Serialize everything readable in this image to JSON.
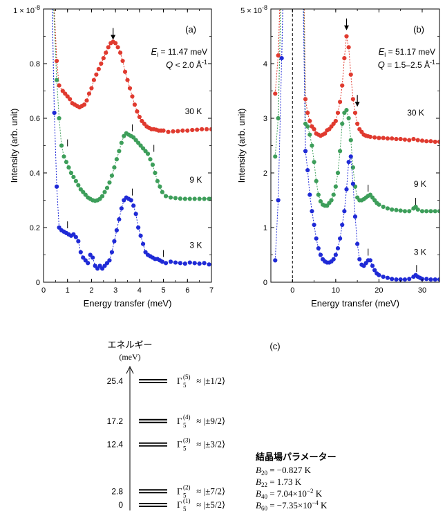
{
  "chart_data": [
    {
      "type": "scatter",
      "panel_label": "(a)",
      "xlabel": "Energy transfer (meV)",
      "ylabel": "Intensity (arb. unit)",
      "xlim": [
        0,
        7
      ],
      "ylim": [
        0,
        1.0
      ],
      "x_ticks": [
        "0",
        "1",
        "2",
        "3",
        "4",
        "5",
        "6",
        "7"
      ],
      "y_ticks": [
        "0",
        "0.2",
        "0.4",
        "0.6",
        "0.8"
      ],
      "y_top_label": "1 × 10",
      "y_top_exp": "-8",
      "ei_label": "E",
      "ei_sub": "i",
      "ei_value": " = 11.47 meV",
      "q_label": "Q",
      "q_value": " < 2.0 Å",
      "q_exp": "-1",
      "series": [
        {
          "name": "30 K",
          "color": "#e03a2f",
          "x": [
            0.55,
            0.65,
            0.8,
            0.9,
            1.0,
            1.1,
            1.2,
            1.3,
            1.4,
            1.5,
            1.6,
            1.7,
            1.8,
            1.9,
            2.0,
            2.1,
            2.2,
            2.3,
            2.4,
            2.5,
            2.6,
            2.7,
            2.8,
            2.9,
            3.0,
            3.1,
            3.2,
            3.3,
            3.4,
            3.5,
            3.6,
            3.7,
            3.8,
            3.9,
            4.0,
            4.1,
            4.2,
            4.3,
            4.4,
            4.5,
            4.6,
            4.7,
            4.8,
            4.9,
            5.0,
            5.2,
            5.4,
            5.6,
            5.8,
            6.0,
            6.2,
            6.4,
            6.6,
            6.8,
            7.0
          ],
          "y": [
            0.81,
            0.72,
            0.7,
            0.69,
            0.68,
            0.67,
            0.655,
            0.65,
            0.645,
            0.64,
            0.645,
            0.65,
            0.665,
            0.69,
            0.71,
            0.74,
            0.76,
            0.78,
            0.8,
            0.82,
            0.84,
            0.86,
            0.875,
            0.88,
            0.875,
            0.86,
            0.84,
            0.81,
            0.77,
            0.74,
            0.71,
            0.68,
            0.65,
            0.625,
            0.605,
            0.59,
            0.58,
            0.57,
            0.565,
            0.56,
            0.56,
            0.558,
            0.555,
            0.555,
            0.555,
            0.55,
            0.552,
            0.553,
            0.555,
            0.555,
            0.557,
            0.558,
            0.56,
            0.56,
            0.56
          ]
        },
        {
          "name": "9 K",
          "color": "#3d9e5a",
          "x": [
            0.55,
            0.65,
            0.75,
            0.85,
            0.95,
            1.05,
            1.15,
            1.25,
            1.35,
            1.45,
            1.55,
            1.65,
            1.75,
            1.85,
            1.95,
            2.05,
            2.15,
            2.25,
            2.35,
            2.45,
            2.55,
            2.65,
            2.75,
            2.85,
            2.95,
            3.05,
            3.15,
            3.25,
            3.35,
            3.45,
            3.55,
            3.65,
            3.75,
            3.85,
            3.95,
            4.05,
            4.15,
            4.25,
            4.35,
            4.45,
            4.55,
            4.65,
            4.75,
            4.85,
            4.95,
            5.1,
            5.3,
            5.5,
            5.7,
            5.9,
            6.1,
            6.3,
            6.5,
            6.7,
            6.9,
            7.0
          ],
          "y": [
            0.74,
            0.6,
            0.5,
            0.46,
            0.44,
            0.42,
            0.4,
            0.385,
            0.37,
            0.355,
            0.34,
            0.33,
            0.32,
            0.31,
            0.305,
            0.3,
            0.298,
            0.3,
            0.305,
            0.315,
            0.33,
            0.345,
            0.365,
            0.39,
            0.42,
            0.45,
            0.48,
            0.51,
            0.535,
            0.545,
            0.54,
            0.535,
            0.53,
            0.52,
            0.51,
            0.5,
            0.49,
            0.48,
            0.47,
            0.45,
            0.43,
            0.4,
            0.37,
            0.35,
            0.33,
            0.315,
            0.31,
            0.308,
            0.306,
            0.305,
            0.305,
            0.305,
            0.305,
            0.305,
            0.305,
            0.305
          ]
        },
        {
          "name": "3 K",
          "color": "#1f2ad6",
          "x": [
            0.45,
            0.55,
            0.65,
            0.75,
            0.85,
            0.95,
            1.05,
            1.15,
            1.25,
            1.35,
            1.45,
            1.55,
            1.65,
            1.75,
            1.85,
            1.95,
            2.05,
            2.15,
            2.25,
            2.35,
            2.45,
            2.55,
            2.65,
            2.75,
            2.85,
            2.95,
            3.05,
            3.15,
            3.25,
            3.35,
            3.45,
            3.55,
            3.65,
            3.75,
            3.85,
            3.95,
            4.05,
            4.15,
            4.25,
            4.35,
            4.45,
            4.55,
            4.65,
            4.75,
            4.85,
            4.95,
            5.1,
            5.3,
            5.5,
            5.7,
            5.9,
            6.1,
            6.3,
            6.5,
            6.7,
            6.9
          ],
          "y": [
            0.62,
            0.35,
            0.2,
            0.19,
            0.185,
            0.18,
            0.175,
            0.17,
            0.175,
            0.165,
            0.15,
            0.11,
            0.09,
            0.08,
            0.07,
            0.1,
            0.09,
            0.06,
            0.05,
            0.06,
            0.05,
            0.06,
            0.07,
            0.08,
            0.11,
            0.15,
            0.19,
            0.23,
            0.27,
            0.3,
            0.31,
            0.305,
            0.3,
            0.28,
            0.25,
            0.2,
            0.17,
            0.14,
            0.11,
            0.1,
            0.095,
            0.09,
            0.085,
            0.085,
            0.08,
            0.075,
            0.07,
            0.075,
            0.072,
            0.07,
            0.068,
            0.072,
            0.07,
            0.068,
            0.07,
            0.065
          ]
        }
      ],
      "tail_lines": [
        {
          "color": "#e03a2f",
          "x": [
            0.55,
            0.42
          ],
          "y": [
            0.81,
            1.05
          ]
        },
        {
          "color": "#3d9e5a",
          "x": [
            0.55,
            0.4
          ],
          "y": [
            0.74,
            1.05
          ]
        },
        {
          "color": "#1f2ad6",
          "x": [
            0.45,
            0.35
          ],
          "y": [
            0.62,
            1.05
          ]
        }
      ],
      "temp_labels": [
        {
          "text": "30 K",
          "x": 6.25,
          "y": 0.615
        },
        {
          "text": "9 K",
          "x": 6.35,
          "y": 0.365
        },
        {
          "text": "3 K",
          "x": 6.35,
          "y": 0.125
        }
      ],
      "arrows": [
        {
          "x": 2.9,
          "y": 0.905
        }
      ],
      "markers": [
        {
          "x": 1.0,
          "y": 0.51
        },
        {
          "x": 3.7,
          "y": 0.565
        },
        {
          "x": 4.6,
          "y": 0.49
        },
        {
          "x": 1.0,
          "y": 0.21
        },
        {
          "x": 3.7,
          "y": 0.33
        },
        {
          "x": 5.0,
          "y": 0.105
        }
      ]
    },
    {
      "type": "scatter",
      "panel_label": "(b)",
      "xlabel": "Energy transfer (meV)",
      "ylabel": "Intensity (arb. unit)",
      "xlim": [
        -5,
        34
      ],
      "ylim": [
        0,
        5.0
      ],
      "x_ticks": [
        "0",
        "10",
        "20",
        "30"
      ],
      "y_ticks": [
        "0",
        "1",
        "2",
        "3",
        "4"
      ],
      "y_top_label": "5 × 10",
      "y_top_exp": "-8",
      "ei_label": "E",
      "ei_sub": "i",
      "ei_value": " = 51.17 meV",
      "q_label": "Q",
      "q_value": " = 1.5–2.5 Å",
      "q_exp": "-1",
      "series": [
        {
          "name": "30 K",
          "color": "#e03a2f",
          "x": [
            -4.0,
            -3.3,
            3.0,
            3.5,
            4.0,
            4.5,
            5.0,
            5.5,
            6.0,
            6.5,
            7.0,
            7.5,
            8.0,
            8.5,
            9.0,
            9.5,
            10.0,
            10.5,
            11.0,
            11.5,
            12.0,
            12.5,
            13.0,
            13.5,
            14.0,
            14.5,
            15.0,
            15.5,
            16.0,
            16.5,
            17.0,
            17.5,
            18.0,
            19.0,
            20.0,
            21.0,
            22.0,
            23.0,
            24.0,
            25.0,
            26.0,
            27.0,
            28.0,
            29.0,
            30.0,
            31.0,
            32.0,
            33.0,
            34.0
          ],
          "y": [
            3.45,
            4.15,
            3.35,
            3.1,
            2.95,
            2.85,
            2.8,
            2.72,
            2.7,
            2.68,
            2.7,
            2.72,
            2.78,
            2.8,
            2.85,
            2.9,
            2.95,
            3.1,
            3.3,
            3.6,
            4.1,
            4.5,
            4.3,
            3.8,
            3.35,
            3.1,
            2.9,
            2.8,
            2.75,
            2.7,
            2.68,
            2.67,
            2.66,
            2.65,
            2.64,
            2.64,
            2.63,
            2.63,
            2.62,
            2.62,
            2.61,
            2.6,
            2.62,
            2.6,
            2.59,
            2.58,
            2.58,
            2.57,
            2.57
          ]
        },
        {
          "name": "9 K",
          "color": "#3d9e5a",
          "x": [
            -4.0,
            -3.3,
            3.0,
            3.5,
            4.0,
            4.5,
            5.0,
            5.5,
            6.0,
            6.5,
            7.0,
            7.5,
            8.0,
            8.5,
            9.0,
            9.5,
            10.0,
            10.5,
            11.0,
            11.5,
            12.0,
            12.5,
            13.0,
            13.5,
            14.0,
            14.5,
            15.0,
            15.5,
            16.0,
            16.5,
            17.0,
            17.5,
            18.0,
            18.5,
            19.0,
            19.5,
            20.0,
            21.0,
            22.0,
            23.0,
            24.0,
            25.0,
            26.0,
            27.0,
            28.0,
            28.5,
            29.0,
            30.0,
            31.0,
            32.0,
            33.0,
            34.0
          ],
          "y": [
            2.3,
            3.0,
            2.9,
            2.85,
            2.7,
            2.5,
            2.2,
            1.85,
            1.6,
            1.48,
            1.42,
            1.4,
            1.4,
            1.45,
            1.5,
            1.6,
            1.75,
            2.0,
            2.4,
            2.9,
            3.1,
            3.15,
            3.0,
            2.6,
            2.1,
            1.75,
            1.55,
            1.5,
            1.5,
            1.52,
            1.55,
            1.58,
            1.6,
            1.55,
            1.5,
            1.45,
            1.42,
            1.38,
            1.35,
            1.33,
            1.32,
            1.31,
            1.3,
            1.3,
            1.35,
            1.38,
            1.33,
            1.3,
            1.3,
            1.3,
            1.3,
            1.3
          ]
        },
        {
          "name": "3 K",
          "color": "#1f2ad6",
          "x": [
            -4.0,
            -3.3,
            -2.5,
            3.0,
            3.5,
            4.0,
            4.5,
            5.0,
            5.5,
            6.0,
            6.5,
            7.0,
            7.5,
            8.0,
            8.5,
            9.0,
            9.5,
            10.0,
            10.5,
            11.0,
            11.5,
            12.0,
            12.5,
            13.0,
            13.5,
            14.0,
            14.5,
            15.0,
            15.5,
            16.0,
            16.5,
            17.0,
            17.5,
            18.0,
            18.5,
            19.0,
            19.5,
            20.0,
            21.0,
            22.0,
            23.0,
            24.0,
            25.0,
            26.0,
            27.0,
            28.0,
            28.5,
            29.0,
            29.5,
            30.0,
            31.0,
            32.0,
            33.0,
            34.0
          ],
          "y": [
            0.4,
            1.5,
            4.1,
            2.4,
            2.05,
            1.6,
            1.3,
            1.05,
            0.8,
            0.62,
            0.5,
            0.42,
            0.38,
            0.36,
            0.36,
            0.38,
            0.42,
            0.5,
            0.62,
            0.8,
            1.05,
            1.3,
            1.7,
            2.2,
            2.3,
            1.8,
            1.2,
            0.7,
            0.42,
            0.32,
            0.3,
            0.35,
            0.4,
            0.4,
            0.3,
            0.22,
            0.16,
            0.13,
            0.1,
            0.08,
            0.06,
            0.05,
            0.05,
            0.05,
            0.06,
            0.1,
            0.13,
            0.1,
            0.08,
            0.06,
            0.06,
            0.05,
            0.05,
            0.05
          ]
        }
      ],
      "tail_lines": [
        {
          "color": "#e03a2f",
          "x": [
            -3.3,
            -2.9
          ],
          "y": [
            4.15,
            5.1
          ]
        },
        {
          "color": "#3d9e5a",
          "x": [
            -3.3,
            -2.7
          ],
          "y": [
            3.0,
            5.1
          ]
        },
        {
          "color": "#1f2ad6",
          "x": [
            -2.5,
            -2.2
          ],
          "y": [
            4.1,
            5.1
          ]
        },
        {
          "color": "#e03a2f",
          "x": [
            3.0,
            2.7
          ],
          "y": [
            3.35,
            5.1
          ]
        },
        {
          "color": "#3d9e5a",
          "x": [
            3.0,
            2.6
          ],
          "y": [
            2.9,
            5.1
          ]
        },
        {
          "color": "#1f2ad6",
          "x": [
            3.0,
            2.5
          ],
          "y": [
            2.4,
            5.1
          ]
        }
      ],
      "vline_x": 0,
      "temp_labels": [
        {
          "text": "30 K",
          "x": 28.5,
          "y": 3.05
        },
        {
          "text": "9 K",
          "x": 29.5,
          "y": 1.75
        },
        {
          "text": "3 K",
          "x": 29.5,
          "y": 0.5
        }
      ],
      "arrows": [
        {
          "x": 12.5,
          "y": 4.7
        },
        {
          "x": 15.0,
          "y": 3.3
        }
      ],
      "markers": [
        {
          "x": 17.5,
          "y": 1.72
        },
        {
          "x": 28.5,
          "y": 1.48
        },
        {
          "x": 17.5,
          "y": 0.55
        },
        {
          "x": 28.7,
          "y": 0.25
        }
      ]
    }
  ],
  "level_diagram": {
    "panel_label": "(c)",
    "axis_title": "エネルギー",
    "axis_unit": "(meV)",
    "levels": [
      {
        "value": "25.4",
        "energy": 25.4,
        "gamma": "Γ",
        "sub": "5",
        "sup": "(5)",
        "state": " ≈ |±1/2⟩"
      },
      {
        "value": "17.2",
        "energy": 17.2,
        "gamma": "Γ",
        "sub": "5",
        "sup": "(4)",
        "state": " ≈ |±9/2⟩"
      },
      {
        "value": "12.4",
        "energy": 12.4,
        "gamma": "Γ",
        "sub": "5",
        "sup": "(3)",
        "state": " ≈ |±3/2⟩"
      },
      {
        "value": "2.8",
        "energy": 2.8,
        "gamma": "Γ",
        "sub": "5",
        "sup": "(2)",
        "state": " ≈ |±7/2⟩"
      },
      {
        "value": "0",
        "energy": 0,
        "gamma": "Γ",
        "sub": "5",
        "sup": "(1)",
        "state": " ≈ |±5/2⟩"
      }
    ],
    "params_title": "結晶場パラメーター",
    "params": [
      {
        "b": "B",
        "sub": "20",
        "val": " = −0.827 K",
        "exp": ""
      },
      {
        "b": "B",
        "sub": "22",
        "val": " = 1.73 K",
        "exp": ""
      },
      {
        "b": "B",
        "sub": "40",
        "val": " = 7.04×10",
        "exp": "−2",
        "unit": " K"
      },
      {
        "b": "B",
        "sub": "60",
        "val": " = −7.35×10",
        "exp": "−4",
        "unit": " K"
      }
    ]
  }
}
